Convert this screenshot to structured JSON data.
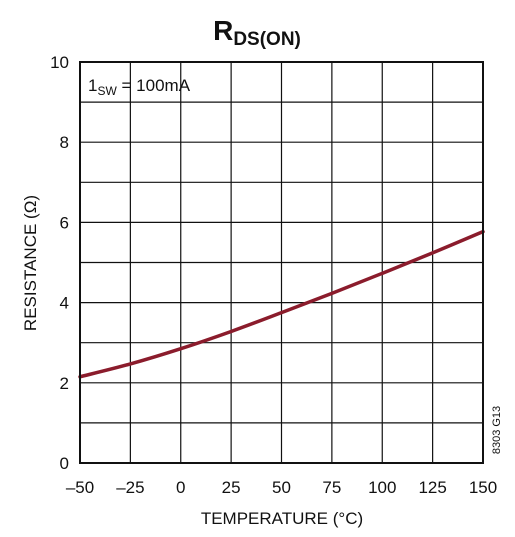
{
  "chart_data": {
    "type": "line",
    "title": {
      "main": "R",
      "sub": "DS(ON)"
    },
    "xlabel": "TEMPERATURE (°C)",
    "ylabel": "RESISTANCE (Ω)",
    "xlim": [
      -50,
      150
    ],
    "ylim": [
      0,
      10
    ],
    "xticks": [
      "–50",
      "–25",
      "0",
      "25",
      "50",
      "75",
      "100",
      "125",
      "150"
    ],
    "xtick_values": [
      -50,
      -25,
      0,
      25,
      50,
      75,
      100,
      125,
      150
    ],
    "yticks": [
      "0",
      "2",
      "4",
      "6",
      "8",
      "10"
    ],
    "ytick_values": [
      0,
      2,
      4,
      6,
      8,
      10
    ],
    "grid": true,
    "annotation": {
      "prefix": "1",
      "sub": "SW",
      "suffix": " = 100mA"
    },
    "figure_id": "8303 G13",
    "series": [
      {
        "color": "#8b1c2c",
        "x": [
          -50,
          -25,
          0,
          25,
          50,
          75,
          100,
          125,
          150
        ],
        "y": [
          2.15,
          2.47,
          2.85,
          3.28,
          3.75,
          4.23,
          4.73,
          5.24,
          5.77
        ]
      }
    ]
  }
}
